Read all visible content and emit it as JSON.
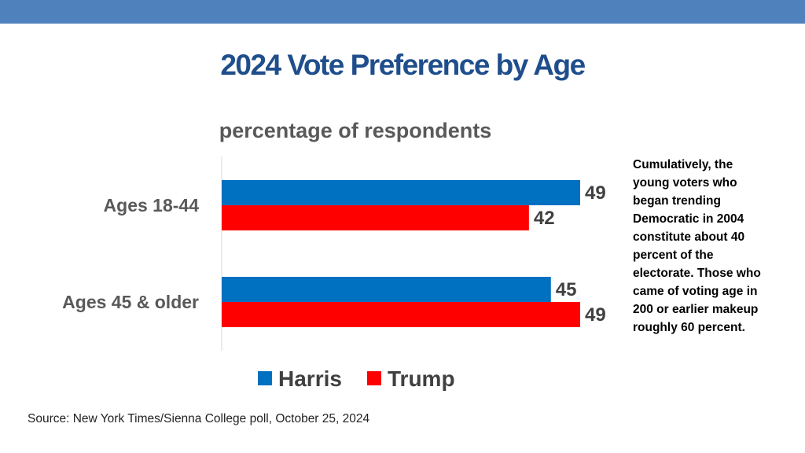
{
  "title": "2024 Vote Preference by Age",
  "note": "Cumulatively, the young voters who began trending Democratic in 2004 constitute about 40 percent of the electorate. Those who came of voting age in 200 or earlier makeup roughly 60 percent.",
  "source": "Source: New York Times/Sienna College poll, October 25, 2024",
  "colors": {
    "band": "#4f81bd",
    "title": "#1f4e8c",
    "harris": "#0070c0",
    "trump": "#ff0000"
  },
  "chart_data": {
    "type": "bar",
    "orientation": "horizontal",
    "title": "percentage of respondents",
    "categories": [
      "Ages 18-44",
      "Ages 45 & older"
    ],
    "series": [
      {
        "name": "Harris",
        "values": [
          49,
          45
        ]
      },
      {
        "name": "Trump",
        "values": [
          42,
          49
        ]
      }
    ],
    "xlim": [
      0,
      50
    ],
    "grid": false,
    "legend": "bottom"
  }
}
